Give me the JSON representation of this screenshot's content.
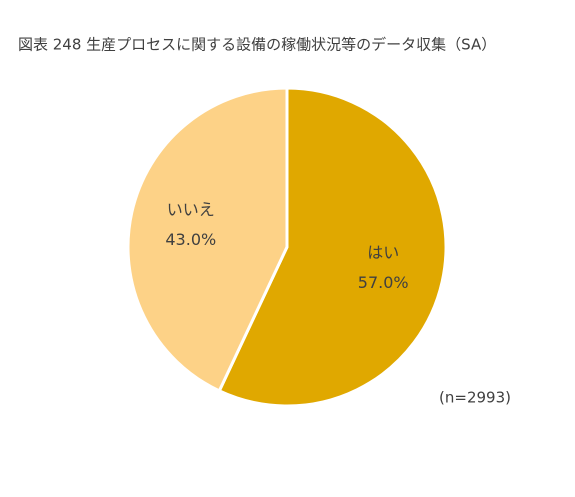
{
  "chart_data": {
    "type": "pie",
    "title": "図表 248 生産プロセスに関する設備の稼働状況等のデータ収集（SA）",
    "categories": [
      "はい",
      "いいえ"
    ],
    "values": [
      57.0,
      43.0
    ],
    "value_labels": [
      "57.0%",
      "43.0%"
    ],
    "colors": [
      "#e0a800",
      "#fdd287"
    ],
    "annotation": "(n=2993)"
  }
}
